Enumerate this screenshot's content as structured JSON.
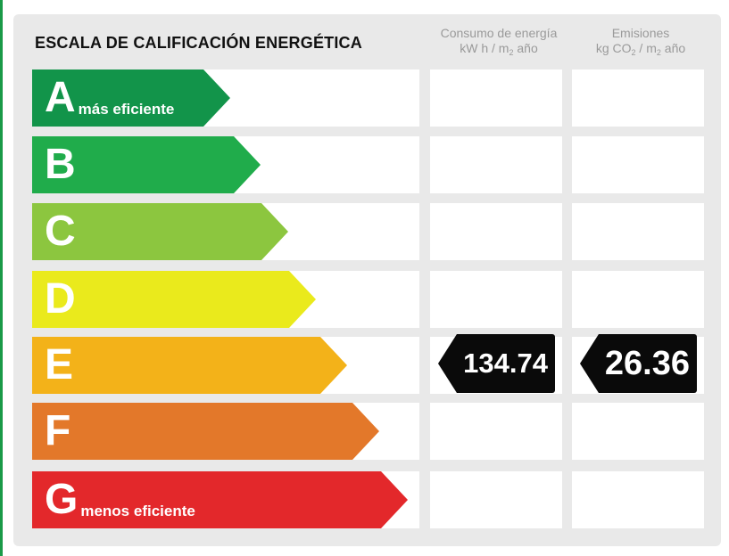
{
  "title": "ESCALA DE CALIFICACIÓN ENERGÉTICA",
  "columns": {
    "consumo": {
      "line1": "Consumo de energía",
      "line2_pre": "kW h / m",
      "line2_sub": "2",
      "line2_post": " año"
    },
    "emisiones": {
      "line1": "Emisiones",
      "line2_pre": "kg CO",
      "line2_sub": "2",
      "line2_mid": " / m",
      "line2_sub2": "2",
      "line2_post": " año"
    }
  },
  "scale": [
    {
      "letter": "A",
      "label": "más eficiente",
      "color": "#12944a"
    },
    {
      "letter": "B",
      "label": "",
      "color": "#20ac4b"
    },
    {
      "letter": "C",
      "label": "",
      "color": "#8cc63f"
    },
    {
      "letter": "D",
      "label": "",
      "color": "#eaea1c"
    },
    {
      "letter": "E",
      "label": "",
      "color": "#f3b219"
    },
    {
      "letter": "F",
      "label": "",
      "color": "#e3782a"
    },
    {
      "letter": "G",
      "label": "menos eficiente",
      "color": "#e3282b"
    }
  ],
  "rating": {
    "class": "E",
    "consumo_value": "134.74",
    "emisiones_value": "26.36"
  }
}
